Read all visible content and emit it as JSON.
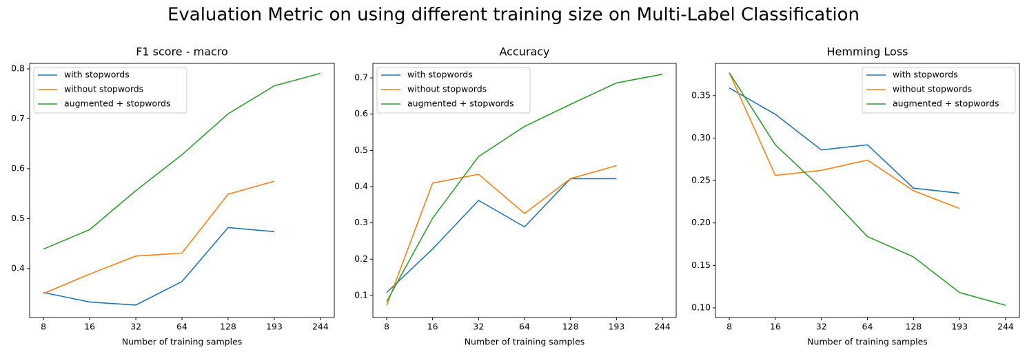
{
  "title": "Evaluation Metric on using different training size on Multi-Label Classification",
  "chart_data": [
    {
      "type": "line",
      "title": "F1 score - macro",
      "x_label": "Number of training samples",
      "categories": [
        "8",
        "16",
        "32",
        "64",
        "128",
        "193",
        "244"
      ],
      "ylim": [
        0.302,
        0.811
      ],
      "yticks": [
        0.4,
        0.5,
        0.6,
        0.7,
        0.8
      ],
      "legend": "upper left",
      "series": [
        {
          "name": "with stopwords",
          "color": "#1f77b4",
          "values": [
            0.352,
            0.333,
            0.327,
            0.374,
            0.482,
            0.474,
            null
          ]
        },
        {
          "name": "without stopwords",
          "color": "#ff7f0e",
          "values": [
            0.35,
            0.389,
            0.425,
            0.431,
            0.549,
            0.575,
            null
          ]
        },
        {
          "name": "augmented + stopwords",
          "color": "#2ca02c",
          "values": [
            0.439,
            0.478,
            0.556,
            0.628,
            0.71,
            0.766,
            0.791
          ]
        }
      ]
    },
    {
      "type": "line",
      "title": "Accuracy",
      "x_label": "Number of training samples",
      "categories": [
        "8",
        "16",
        "32",
        "64",
        "128",
        "193",
        "244"
      ],
      "ylim": [
        0.039,
        0.74
      ],
      "yticks": [
        0.1,
        0.2,
        0.3,
        0.4,
        0.5,
        0.6,
        0.7
      ],
      "legend": "upper left",
      "series": [
        {
          "name": "with stopwords",
          "color": "#1f77b4",
          "values": [
            0.108,
            0.228,
            0.362,
            0.289,
            0.422,
            0.422,
            null
          ]
        },
        {
          "name": "without stopwords",
          "color": "#ff7f0e",
          "values": [
            0.072,
            0.41,
            0.434,
            0.326,
            0.422,
            0.458,
            null
          ]
        },
        {
          "name": "augmented + stopwords",
          "color": "#2ca02c",
          "values": [
            0.083,
            0.313,
            0.483,
            0.566,
            0.627,
            0.686,
            0.71
          ]
        }
      ]
    },
    {
      "type": "line",
      "title": "Hemming Loss",
      "x_label": "Number of training samples",
      "categories": [
        "8",
        "16",
        "32",
        "64",
        "128",
        "193",
        "244"
      ],
      "ylim": [
        0.0886,
        0.388
      ],
      "yticks": [
        {
          "value": 0.1,
          "label": "0.10"
        },
        0.15,
        {
          "value": 0.2,
          "label": "0.20"
        },
        0.25,
        {
          "value": 0.3,
          "label": "0.30"
        },
        0.35
      ],
      "legend": "upper right",
      "series": [
        {
          "name": "with stopwords",
          "color": "#1f77b4",
          "values": [
            0.359,
            0.328,
            0.286,
            0.292,
            0.241,
            0.235,
            null
          ]
        },
        {
          "name": "without stopwords",
          "color": "#ff7f0e",
          "values": [
            0.377,
            0.256,
            0.262,
            0.274,
            0.238,
            0.217,
            null
          ]
        },
        {
          "name": "augmented + stopwords",
          "color": "#2ca02c",
          "values": [
            0.377,
            0.292,
            0.241,
            0.184,
            0.16,
            0.118,
            0.103
          ]
        }
      ]
    }
  ]
}
